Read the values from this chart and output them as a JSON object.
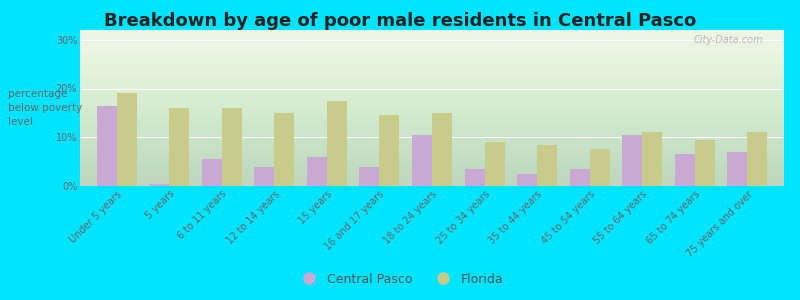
{
  "title": "Breakdown by age of poor male residents in Central Pasco",
  "ylabel": "percentage\nbelow poverty\nlevel",
  "categories": [
    "Under 5 years",
    "5 years",
    "6 to 11 years",
    "12 to 14 years",
    "15 years",
    "16 and 17 years",
    "18 to 24 years",
    "25 to 34 years",
    "35 to 44 years",
    "45 to 54 years",
    "55 to 64 years",
    "65 to 74 years",
    "75 years and over"
  ],
  "central_pasco": [
    16.5,
    0.5,
    5.5,
    4.0,
    6.0,
    4.0,
    10.5,
    3.5,
    2.5,
    3.5,
    10.5,
    6.5,
    7.0
  ],
  "florida": [
    19.0,
    16.0,
    16.0,
    15.0,
    17.5,
    14.5,
    15.0,
    9.0,
    8.5,
    7.5,
    11.0,
    9.5,
    11.0
  ],
  "bar_color_pasco": "#c9a8d4",
  "bar_color_florida": "#c8cc8a",
  "background_top": "#f5f5f0",
  "background_bottom": "#deecd8",
  "outer_background": "#00e5ff",
  "yticks": [
    0,
    10,
    20,
    30
  ],
  "ytick_labels": [
    "0%",
    "10%",
    "20%",
    "30%"
  ],
  "ylim": [
    0,
    32
  ],
  "title_fontsize": 13,
  "ylabel_fontsize": 7.5,
  "tick_label_fontsize": 7,
  "legend_fontsize": 9,
  "watermark": "City-Data.com"
}
